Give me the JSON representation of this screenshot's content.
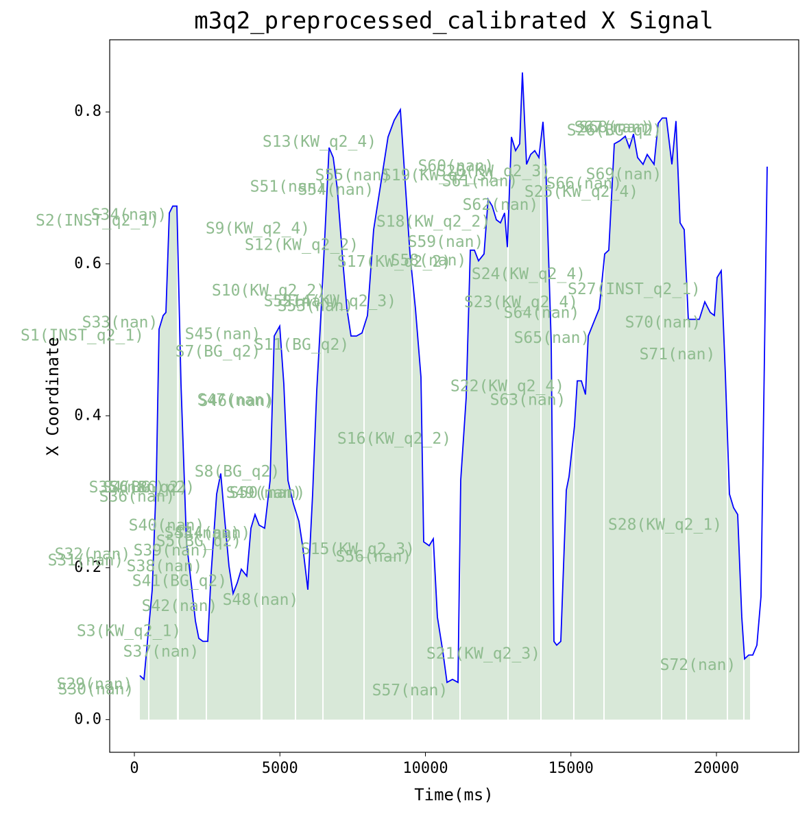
{
  "chart_data": {
    "type": "line",
    "title": "m3q2_preprocessed_calibrated X Signal",
    "x_label": "Time(ms)",
    "y_label": "X Coordinate",
    "xlim": [
      -848,
      22827
    ],
    "ylim": [
      -0.043,
      0.895
    ],
    "xticks": [
      0,
      5000,
      10000,
      15000,
      20000
    ],
    "yticks": [
      {
        "value": 0,
        "label": "0.0"
      },
      0.2,
      0.4,
      0.6,
      0.8
    ],
    "x": [
      188,
      330,
      613,
      754,
      848,
      989,
      1084,
      1201,
      1319,
      1461,
      1602,
      1790,
      1979,
      2097,
      2214,
      2356,
      2521,
      2638,
      2827,
      2968,
      3110,
      3251,
      3392,
      3534,
      3675,
      3863,
      4005,
      4146,
      4287,
      4476,
      4664,
      4806,
      4994,
      5135,
      5277,
      5465,
      5654,
      5795,
      5960,
      6125,
      6266,
      6408,
      6549,
      6690,
      6832,
      6973,
      7161,
      7303,
      7444,
      7632,
      7821,
      8009,
      8221,
      8457,
      8716,
      8928,
      9140,
      9281,
      9470,
      9658,
      9847,
      9941,
      10130,
      10271,
      10412,
      10601,
      10742,
      10930,
      11119,
      11213,
      11401,
      11543,
      11684,
      11825,
      12014,
      12155,
      12297,
      12438,
      12579,
      12721,
      12815,
      12956,
      13098,
      13239,
      13333,
      13475,
      13616,
      13757,
      13899,
      14040,
      14134,
      14323,
      14417,
      14511,
      14652,
      14841,
      14935,
      15123,
      15218,
      15359,
      15500,
      15595,
      15783,
      15972,
      16160,
      16301,
      16490,
      16678,
      16867,
      17008,
      17150,
      17291,
      17479,
      17621,
      17856,
      17998,
      18139,
      18280,
      18469,
      18610,
      18751,
      18893,
      19034,
      19223,
      19411,
      19600,
      19788,
      19929,
      20023,
      20165,
      20306,
      20447,
      20589,
      20730,
      20871,
      20966,
      21107,
      21248,
      21390,
      21531,
      21743
    ],
    "series": [
      {
        "color": "#0000ff",
        "values": [
          0.058,
          0.053,
          0.171,
          0.315,
          0.514,
          0.532,
          0.536,
          0.667,
          0.676,
          0.676,
          0.442,
          0.234,
          0.171,
          0.13,
          0.107,
          0.103,
          0.103,
          0.193,
          0.297,
          0.324,
          0.261,
          0.202,
          0.166,
          0.18,
          0.198,
          0.189,
          0.252,
          0.27,
          0.256,
          0.252,
          0.315,
          0.505,
          0.518,
          0.442,
          0.315,
          0.284,
          0.261,
          0.225,
          0.171,
          0.297,
          0.433,
          0.532,
          0.64,
          0.753,
          0.74,
          0.699,
          0.604,
          0.541,
          0.505,
          0.505,
          0.509,
          0.532,
          0.645,
          0.703,
          0.767,
          0.789,
          0.803,
          0.721,
          0.613,
          0.541,
          0.451,
          0.234,
          0.229,
          0.238,
          0.135,
          0.089,
          0.049,
          0.053,
          0.049,
          0.315,
          0.424,
          0.618,
          0.618,
          0.604,
          0.613,
          0.685,
          0.676,
          0.658,
          0.654,
          0.667,
          0.622,
          0.767,
          0.749,
          0.758,
          0.852,
          0.731,
          0.744,
          0.749,
          0.74,
          0.787,
          0.731,
          0.496,
          0.103,
          0.098,
          0.103,
          0.302,
          0.32,
          0.387,
          0.446,
          0.446,
          0.428,
          0.505,
          0.523,
          0.541,
          0.613,
          0.618,
          0.758,
          0.762,
          0.768,
          0.753,
          0.771,
          0.74,
          0.731,
          0.744,
          0.731,
          0.785,
          0.792,
          0.792,
          0.731,
          0.788,
          0.654,
          0.645,
          0.527,
          0.527,
          0.527,
          0.55,
          0.536,
          0.532,
          0.582,
          0.591,
          0.455,
          0.297,
          0.279,
          0.27,
          0.135,
          0.08,
          0.085,
          0.085,
          0.098,
          0.162,
          0.728
        ]
      }
    ],
    "shade_color": "#8fbc8f",
    "shaded_segments": [
      [
        188,
        471
      ],
      [
        518,
        1461
      ],
      [
        1531,
        2450
      ],
      [
        2497,
        4334
      ],
      [
        4405,
        5512
      ],
      [
        5559,
        6455
      ],
      [
        6502,
        7868
      ],
      [
        7915,
        9517
      ],
      [
        9564,
        10224
      ],
      [
        10271,
        11166
      ],
      [
        11213,
        12815
      ],
      [
        12862,
        13946
      ],
      [
        13993,
        15076
      ],
      [
        15123,
        16113
      ],
      [
        16160,
        18092
      ],
      [
        18139,
        18940
      ],
      [
        18987,
        20353
      ],
      [
        20400,
        20918
      ],
      [
        20966,
        21154
      ]
    ],
    "annotation_color": "#8fbc8f",
    "annotations": [
      {
        "text": "S1(INST_q2_1)",
        "x": -1790,
        "y": 0.505
      },
      {
        "text": "S2(INST_q2_1)",
        "x": -1272,
        "y": 0.656
      },
      {
        "text": "S3(KW_q2_1)",
        "x": -188,
        "y": 0.116
      },
      {
        "text": "S4(BG_q2)",
        "x": 377,
        "y": 0.305
      },
      {
        "text": "S5(BG_q2)",
        "x": 2214,
        "y": 0.234
      },
      {
        "text": "S6(BG_q2)",
        "x": 612,
        "y": 0.305
      },
      {
        "text": "S7(BG_q2)",
        "x": 2874,
        "y": 0.484
      },
      {
        "text": "S8(BG_q2)",
        "x": 3534,
        "y": 0.326
      },
      {
        "text": "S9(KW_q2_4)",
        "x": 4240,
        "y": 0.646
      },
      {
        "text": "S10(KW_q2_2)",
        "x": 4617,
        "y": 0.564
      },
      {
        "text": "S11(BG_q2)",
        "x": 5748,
        "y": 0.493
      },
      {
        "text": "S12(KW_q2_2)",
        "x": 5748,
        "y": 0.624
      },
      {
        "text": "S13(KW_q2_4)",
        "x": 6360,
        "y": 0.76
      },
      {
        "text": "S14(KW_q2_3)",
        "x": 7044,
        "y": 0.55
      },
      {
        "text": "S15(KW_q2_3)",
        "x": 7680,
        "y": 0.224
      },
      {
        "text": "S16(KW_q2_2)",
        "x": 8928,
        "y": 0.369
      },
      {
        "text": "S17(KW_q2_2)",
        "x": 8928,
        "y": 0.602
      },
      {
        "text": "S18(KW_q2_2)",
        "x": 10271,
        "y": 0.655
      },
      {
        "text": "S19(KW_q2_3)",
        "x": 10459,
        "y": 0.716
      },
      {
        "text": "S20(KW_q2_3)",
        "x": 12344,
        "y": 0.721
      },
      {
        "text": "S21(KW_q2_3)",
        "x": 11990,
        "y": 0.086
      },
      {
        "text": "S22(KW_q2_4)",
        "x": 12815,
        "y": 0.438
      },
      {
        "text": "S23(KW_q2_4)",
        "x": 13286,
        "y": 0.549
      },
      {
        "text": "S24(KW_q2_4)",
        "x": 13545,
        "y": 0.586
      },
      {
        "text": "S25(KW_q2_4)",
        "x": 15359,
        "y": 0.694
      },
      {
        "text": "S26(BG_q2)",
        "x": 16490,
        "y": 0.775
      },
      {
        "text": "S27(INST_q2_1)",
        "x": 17173,
        "y": 0.566
      },
      {
        "text": "S28(KW_q2_1)",
        "x": 18233,
        "y": 0.256
      },
      {
        "text": "S29(nan)",
        "x": -1366,
        "y": 0.046
      },
      {
        "text": "S30(nan)",
        "x": -1319,
        "y": 0.039
      },
      {
        "text": "S31(nan)",
        "x": -1673,
        "y": 0.209
      },
      {
        "text": "S32(nan)",
        "x": -1437,
        "y": 0.217
      },
      {
        "text": "S33(nan)",
        "x": -495,
        "y": 0.522
      },
      {
        "text": "S34(nan)",
        "x": -188,
        "y": 0.664
      },
      {
        "text": "S35(nan)",
        "x": -259,
        "y": 0.305
      },
      {
        "text": "S36(nan)",
        "x": 94,
        "y": 0.293
      },
      {
        "text": "S37(nan)",
        "x": 919,
        "y": 0.089
      },
      {
        "text": "S38(nan)",
        "x": 1037,
        "y": 0.201
      },
      {
        "text": "S39(nan)",
        "x": 1272,
        "y": 0.222
      },
      {
        "text": "S40(nan)",
        "x": 1107,
        "y": 0.255
      },
      {
        "text": "S41(BG_q2)",
        "x": 1555,
        "y": 0.182
      },
      {
        "text": "S42(nan)",
        "x": 1555,
        "y": 0.149
      },
      {
        "text": "S43(nan)",
        "x": 2332,
        "y": 0.245
      },
      {
        "text": "S44(nan)",
        "x": 2686,
        "y": 0.245
      },
      {
        "text": "S45(nan)",
        "x": 3039,
        "y": 0.507
      },
      {
        "text": "S46(nan)",
        "x": 3510,
        "y": 0.419
      },
      {
        "text": "S47(nan)",
        "x": 3463,
        "y": 0.42
      },
      {
        "text": "S48(nan)",
        "x": 4334,
        "y": 0.157
      },
      {
        "text": "S49(nan)",
        "x": 4452,
        "y": 0.298
      },
      {
        "text": "S50(nan)",
        "x": 4570,
        "y": 0.298
      },
      {
        "text": "S51(nan)",
        "x": 5277,
        "y": 0.701
      },
      {
        "text": "S52(nan)",
        "x": 5748,
        "y": 0.55
      },
      {
        "text": "S53(nan)",
        "x": 6219,
        "y": 0.544
      },
      {
        "text": "S54(nan)",
        "x": 6926,
        "y": 0.697
      },
      {
        "text": "S55(nan)",
        "x": 7515,
        "y": 0.716
      },
      {
        "text": "S56(nan)",
        "x": 8221,
        "y": 0.214
      },
      {
        "text": "S57(nan)",
        "x": 9470,
        "y": 0.038
      },
      {
        "text": "S58(nan)",
        "x": 10106,
        "y": 0.604
      },
      {
        "text": "S59(nan)",
        "x": 10695,
        "y": 0.628
      },
      {
        "text": "S60(nan)",
        "x": 11048,
        "y": 0.728
      },
      {
        "text": "S61(nan)",
        "x": 11873,
        "y": 0.708
      },
      {
        "text": "S62(nan)",
        "x": 12579,
        "y": 0.677
      },
      {
        "text": "S63(nan)",
        "x": 13522,
        "y": 0.42
      },
      {
        "text": "S64(nan)",
        "x": 13993,
        "y": 0.535
      },
      {
        "text": "S65(nan)",
        "x": 14346,
        "y": 0.502
      },
      {
        "text": "S66(nan)",
        "x": 15453,
        "y": 0.705
      },
      {
        "text": "S67(nan)",
        "x": 16419,
        "y": 0.779
      },
      {
        "text": "S68(nan)",
        "x": 16584,
        "y": 0.779
      },
      {
        "text": "S69(nan)",
        "x": 16820,
        "y": 0.717
      },
      {
        "text": "S70(nan)",
        "x": 18163,
        "y": 0.522
      },
      {
        "text": "S71(nan)",
        "x": 18657,
        "y": 0.48
      },
      {
        "text": "S72(nan)",
        "x": 19364,
        "y": 0.071
      }
    ]
  }
}
